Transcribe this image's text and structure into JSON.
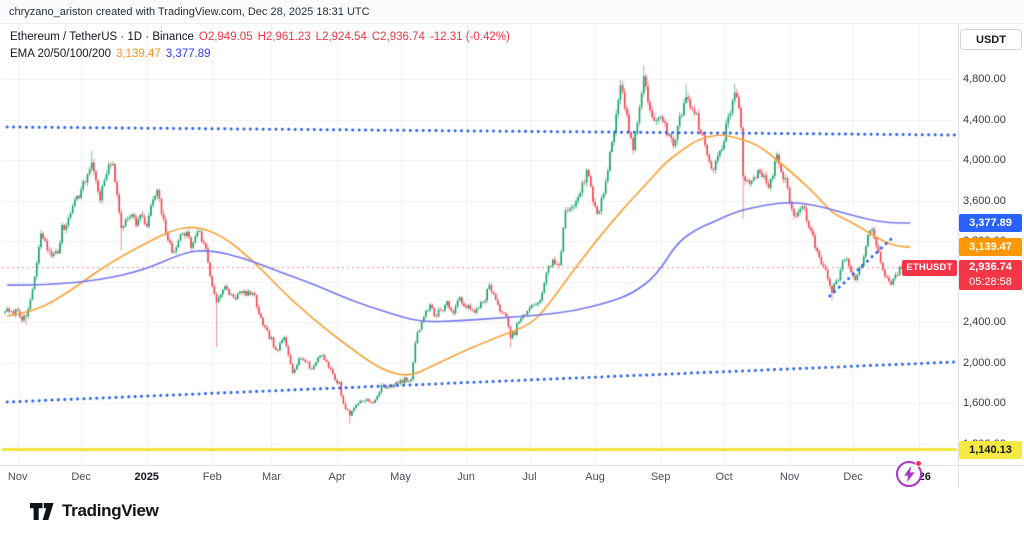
{
  "attribution": "chryzano_ariston created with TradingView.com, Dec 28, 2025 18:31 UTC",
  "legend": {
    "title_line": "Ethereum / TetherUS · 1D · Binance",
    "ohlc": {
      "open": "O2,949.05",
      "high": "H2,961.23",
      "low": "L2,924.54",
      "close": "C2,936.74",
      "change": "-12.31 (-0.42%)"
    },
    "ema": {
      "label": "EMA 20/50/100/200",
      "fast": "3,139.47",
      "slow": "3,377.89"
    }
  },
  "axis": {
    "currency": "USDT"
  },
  "price_tags": {
    "ema_slow": {
      "text": "3,377.89",
      "price": 3377.89
    },
    "ema_fast": {
      "text": "3,139.47",
      "price": 3139.47
    },
    "current": {
      "symbol": "ETHUSDT",
      "text": "2,936.74",
      "price": 2936.74,
      "countdown": "05:28:58"
    },
    "yellow": {
      "text": "1,140.13",
      "price": 1140.13
    }
  },
  "footer": {
    "logo_text": "TradingView"
  },
  "colors": {
    "up": "#12a168",
    "down": "#ef4350",
    "ema_fast": "#f7a43b",
    "ema_slow": "#7678ee",
    "drawing_blue": "#2e62f0",
    "level_yellow": "#f2e33c",
    "current_red": "#f23645",
    "grid": "#f0f1f5"
  },
  "chart_data": {
    "type": "candlestick",
    "symbol": "ETHUSDT",
    "exchange": "Binance",
    "interval": "1D",
    "visible_price_range": [
      990,
      5340
    ],
    "price_ticks": [
      4800,
      4400,
      4000,
      3600,
      3200,
      2800,
      2400,
      2000,
      1600,
      1200
    ],
    "time_ticks": [
      {
        "label": "Nov",
        "day": 6
      },
      {
        "label": "Dec",
        "day": 36
      },
      {
        "label": "2025",
        "day": 67
      },
      {
        "label": "Feb",
        "day": 98
      },
      {
        "label": "Mar",
        "day": 126
      },
      {
        "label": "Apr",
        "day": 157
      },
      {
        "label": "May",
        "day": 187
      },
      {
        "label": "Jun",
        "day": 218
      },
      {
        "label": "Jul",
        "day": 248
      },
      {
        "label": "Aug",
        "day": 279
      },
      {
        "label": "Sep",
        "day": 310
      },
      {
        "label": "Oct",
        "day": 340
      },
      {
        "label": "Nov",
        "day": 371
      },
      {
        "label": "Dec",
        "day": 401
      },
      {
        "label": "2026",
        "day": 432
      }
    ],
    "anchors": [
      [
        0,
        2520
      ],
      [
        3,
        2480
      ],
      [
        6,
        2515
      ],
      [
        8,
        2440
      ],
      [
        10,
        2430
      ],
      [
        13,
        2720
      ],
      [
        15,
        2960
      ],
      [
        17,
        3280
      ],
      [
        20,
        3120
      ],
      [
        23,
        3060
      ],
      [
        25,
        3090
      ],
      [
        27,
        3320
      ],
      [
        29,
        3360
      ],
      [
        32,
        3580
      ],
      [
        34,
        3620
      ],
      [
        36,
        3700
      ],
      [
        39,
        3850
      ],
      [
        41,
        3995
      ],
      [
        43,
        3780
      ],
      [
        45,
        3630
      ],
      [
        48,
        3870
      ],
      [
        51,
        3990
      ],
      [
        53,
        3620
      ],
      [
        55,
        3330
      ],
      [
        57,
        3420
      ],
      [
        59,
        3480
      ],
      [
        62,
        3380
      ],
      [
        64,
        3440
      ],
      [
        67,
        3350
      ],
      [
        70,
        3610
      ],
      [
        72,
        3680
      ],
      [
        75,
        3380
      ],
      [
        79,
        3070
      ],
      [
        82,
        3220
      ],
      [
        86,
        3290
      ],
      [
        88,
        3140
      ],
      [
        91,
        3320
      ],
      [
        95,
        3110
      ],
      [
        98,
        2750
      ],
      [
        100,
        2620
      ],
      [
        104,
        2730
      ],
      [
        108,
        2640
      ],
      [
        111,
        2680
      ],
      [
        115,
        2690
      ],
      [
        118,
        2640
      ],
      [
        122,
        2350
      ],
      [
        126,
        2230
      ],
      [
        128,
        2100
      ],
      [
        132,
        2240
      ],
      [
        136,
        1920
      ],
      [
        140,
        2060
      ],
      [
        145,
        1930
      ],
      [
        149,
        2090
      ],
      [
        152,
        2010
      ],
      [
        156,
        1830
      ],
      [
        158,
        1790
      ],
      [
        160,
        1590
      ],
      [
        163,
        1480
      ],
      [
        166,
        1590
      ],
      [
        170,
        1640
      ],
      [
        174,
        1590
      ],
      [
        178,
        1760
      ],
      [
        182,
        1770
      ],
      [
        186,
        1795
      ],
      [
        189,
        1830
      ],
      [
        192,
        1815
      ],
      [
        194,
        2210
      ],
      [
        196,
        2340
      ],
      [
        198,
        2480
      ],
      [
        201,
        2560
      ],
      [
        203,
        2460
      ],
      [
        206,
        2520
      ],
      [
        209,
        2590
      ],
      [
        212,
        2480
      ],
      [
        215,
        2635
      ],
      [
        218,
        2560
      ],
      [
        222,
        2480
      ],
      [
        224,
        2560
      ],
      [
        227,
        2640
      ],
      [
        229,
        2760
      ],
      [
        232,
        2600
      ],
      [
        235,
        2500
      ],
      [
        237,
        2430
      ],
      [
        239,
        2250
      ],
      [
        241,
        2300
      ],
      [
        243,
        2420
      ],
      [
        245,
        2450
      ],
      [
        247,
        2500
      ],
      [
        250,
        2570
      ],
      [
        253,
        2620
      ],
      [
        255,
        2770
      ],
      [
        257,
        2960
      ],
      [
        259,
        3000
      ],
      [
        262,
        2940
      ],
      [
        265,
        3480
      ],
      [
        268,
        3550
      ],
      [
        271,
        3640
      ],
      [
        273,
        3760
      ],
      [
        275,
        3870
      ],
      [
        277,
        3720
      ],
      [
        280,
        3440
      ],
      [
        283,
        3680
      ],
      [
        286,
        4050
      ],
      [
        291,
        4740
      ],
      [
        294,
        4430
      ],
      [
        297,
        4100
      ],
      [
        300,
        4550
      ],
      [
        302,
        4780
      ],
      [
        305,
        4500
      ],
      [
        308,
        4370
      ],
      [
        310,
        4390
      ],
      [
        313,
        4280
      ],
      [
        316,
        4150
      ],
      [
        319,
        4390
      ],
      [
        322,
        4650
      ],
      [
        326,
        4480
      ],
      [
        331,
        4150
      ],
      [
        334,
        3890
      ],
      [
        337,
        4020
      ],
      [
        340,
        4220
      ],
      [
        345,
        4690
      ],
      [
        348,
        4370
      ],
      [
        349,
        3860
      ],
      [
        351,
        3760
      ],
      [
        356,
        3890
      ],
      [
        361,
        3750
      ],
      [
        365,
        4020
      ],
      [
        369,
        3780
      ],
      [
        373,
        3430
      ],
      [
        377,
        3540
      ],
      [
        379,
        3420
      ],
      [
        384,
        3090
      ],
      [
        387,
        2950
      ],
      [
        391,
        2720
      ],
      [
        394,
        2840
      ],
      [
        397,
        3040
      ],
      [
        399,
        2960
      ],
      [
        402,
        2810
      ],
      [
        405,
        2980
      ],
      [
        409,
        3330
      ],
      [
        412,
        3180
      ],
      [
        415,
        2900
      ],
      [
        419,
        2780
      ],
      [
        422,
        2890
      ],
      [
        424,
        2955
      ],
      [
        426,
        2900
      ],
      [
        428,
        2936.74
      ]
    ],
    "key_extremes": [
      {
        "day": 10,
        "low": 2375
      },
      {
        "day": 41,
        "high": 4090
      },
      {
        "day": 55,
        "low": 3105
      },
      {
        "day": 100,
        "low": 2152
      },
      {
        "day": 163,
        "low": 1392
      },
      {
        "day": 239,
        "low": 2148
      },
      {
        "day": 291,
        "high": 4792
      },
      {
        "day": 302,
        "high": 4928
      },
      {
        "day": 322,
        "high": 4756
      },
      {
        "day": 345,
        "high": 4752
      },
      {
        "day": 349,
        "low": 3418
      },
      {
        "day": 391,
        "low": 2612
      }
    ],
    "last_candle": {
      "open": 2949.05,
      "high": 2961.23,
      "low": 2924.54,
      "close": 2936.74
    },
    "ema_fast_points": [
      [
        1,
        2459
      ],
      [
        14,
        2499
      ],
      [
        31,
        2706
      ],
      [
        47,
        2953
      ],
      [
        64,
        3151
      ],
      [
        79,
        3309
      ],
      [
        90,
        3348
      ],
      [
        103,
        3250
      ],
      [
        117,
        3012
      ],
      [
        131,
        2706
      ],
      [
        145,
        2440
      ],
      [
        162,
        2163
      ],
      [
        178,
        1926
      ],
      [
        191,
        1857
      ],
      [
        202,
        1966
      ],
      [
        218,
        2124
      ],
      [
        233,
        2252
      ],
      [
        248,
        2370
      ],
      [
        255,
        2519
      ],
      [
        262,
        2716
      ],
      [
        270,
        2943
      ],
      [
        278,
        3161
      ],
      [
        287,
        3390
      ],
      [
        296,
        3605
      ],
      [
        305,
        3803
      ],
      [
        312,
        3970
      ],
      [
        319,
        4079
      ],
      [
        327,
        4197
      ],
      [
        336,
        4247
      ],
      [
        340,
        4247
      ],
      [
        348,
        4207
      ],
      [
        356,
        4148
      ],
      [
        364,
        4020
      ],
      [
        376,
        3802
      ],
      [
        384,
        3644
      ],
      [
        391,
        3476
      ],
      [
        400,
        3388
      ],
      [
        408,
        3289
      ],
      [
        414,
        3210
      ],
      [
        421,
        3151
      ],
      [
        428,
        3139.47
      ]
    ],
    "ema_slow_points": [
      [
        1,
        2765
      ],
      [
        21,
        2765
      ],
      [
        45,
        2815
      ],
      [
        66,
        2913
      ],
      [
        85,
        3091
      ],
      [
        97,
        3111
      ],
      [
        113,
        3032
      ],
      [
        130,
        2894
      ],
      [
        147,
        2765
      ],
      [
        163,
        2617
      ],
      [
        180,
        2499
      ],
      [
        196,
        2400
      ],
      [
        215,
        2410
      ],
      [
        234,
        2440
      ],
      [
        253,
        2469
      ],
      [
        269,
        2509
      ],
      [
        286,
        2598
      ],
      [
        297,
        2686
      ],
      [
        308,
        2860
      ],
      [
        318,
        3190
      ],
      [
        328,
        3328
      ],
      [
        335,
        3387
      ],
      [
        345,
        3486
      ],
      [
        359,
        3556
      ],
      [
        371,
        3585
      ],
      [
        383,
        3556
      ],
      [
        395,
        3486
      ],
      [
        407,
        3417
      ],
      [
        418,
        3378
      ],
      [
        428,
        3377.89
      ]
    ],
    "trendlines": [
      {
        "name": "upper-resistance",
        "style": "dotted",
        "from": [
          1,
          4326
        ],
        "to": [
          449,
          4247
        ]
      },
      {
        "name": "lower-support",
        "style": "dotted",
        "from": [
          1,
          1610
        ],
        "to": [
          449,
          2005
        ]
      },
      {
        "name": "recent-rising",
        "style": "dotted",
        "from": [
          390,
          2657
        ],
        "to": [
          420,
          3240
        ]
      }
    ],
    "levels": [
      {
        "name": "yellow-support",
        "price": 1140.13,
        "style": "solid",
        "color": "#f2e33c"
      },
      {
        "name": "current-price",
        "price": 2936.74,
        "style": "dotted",
        "color": "#f23645"
      }
    ]
  }
}
